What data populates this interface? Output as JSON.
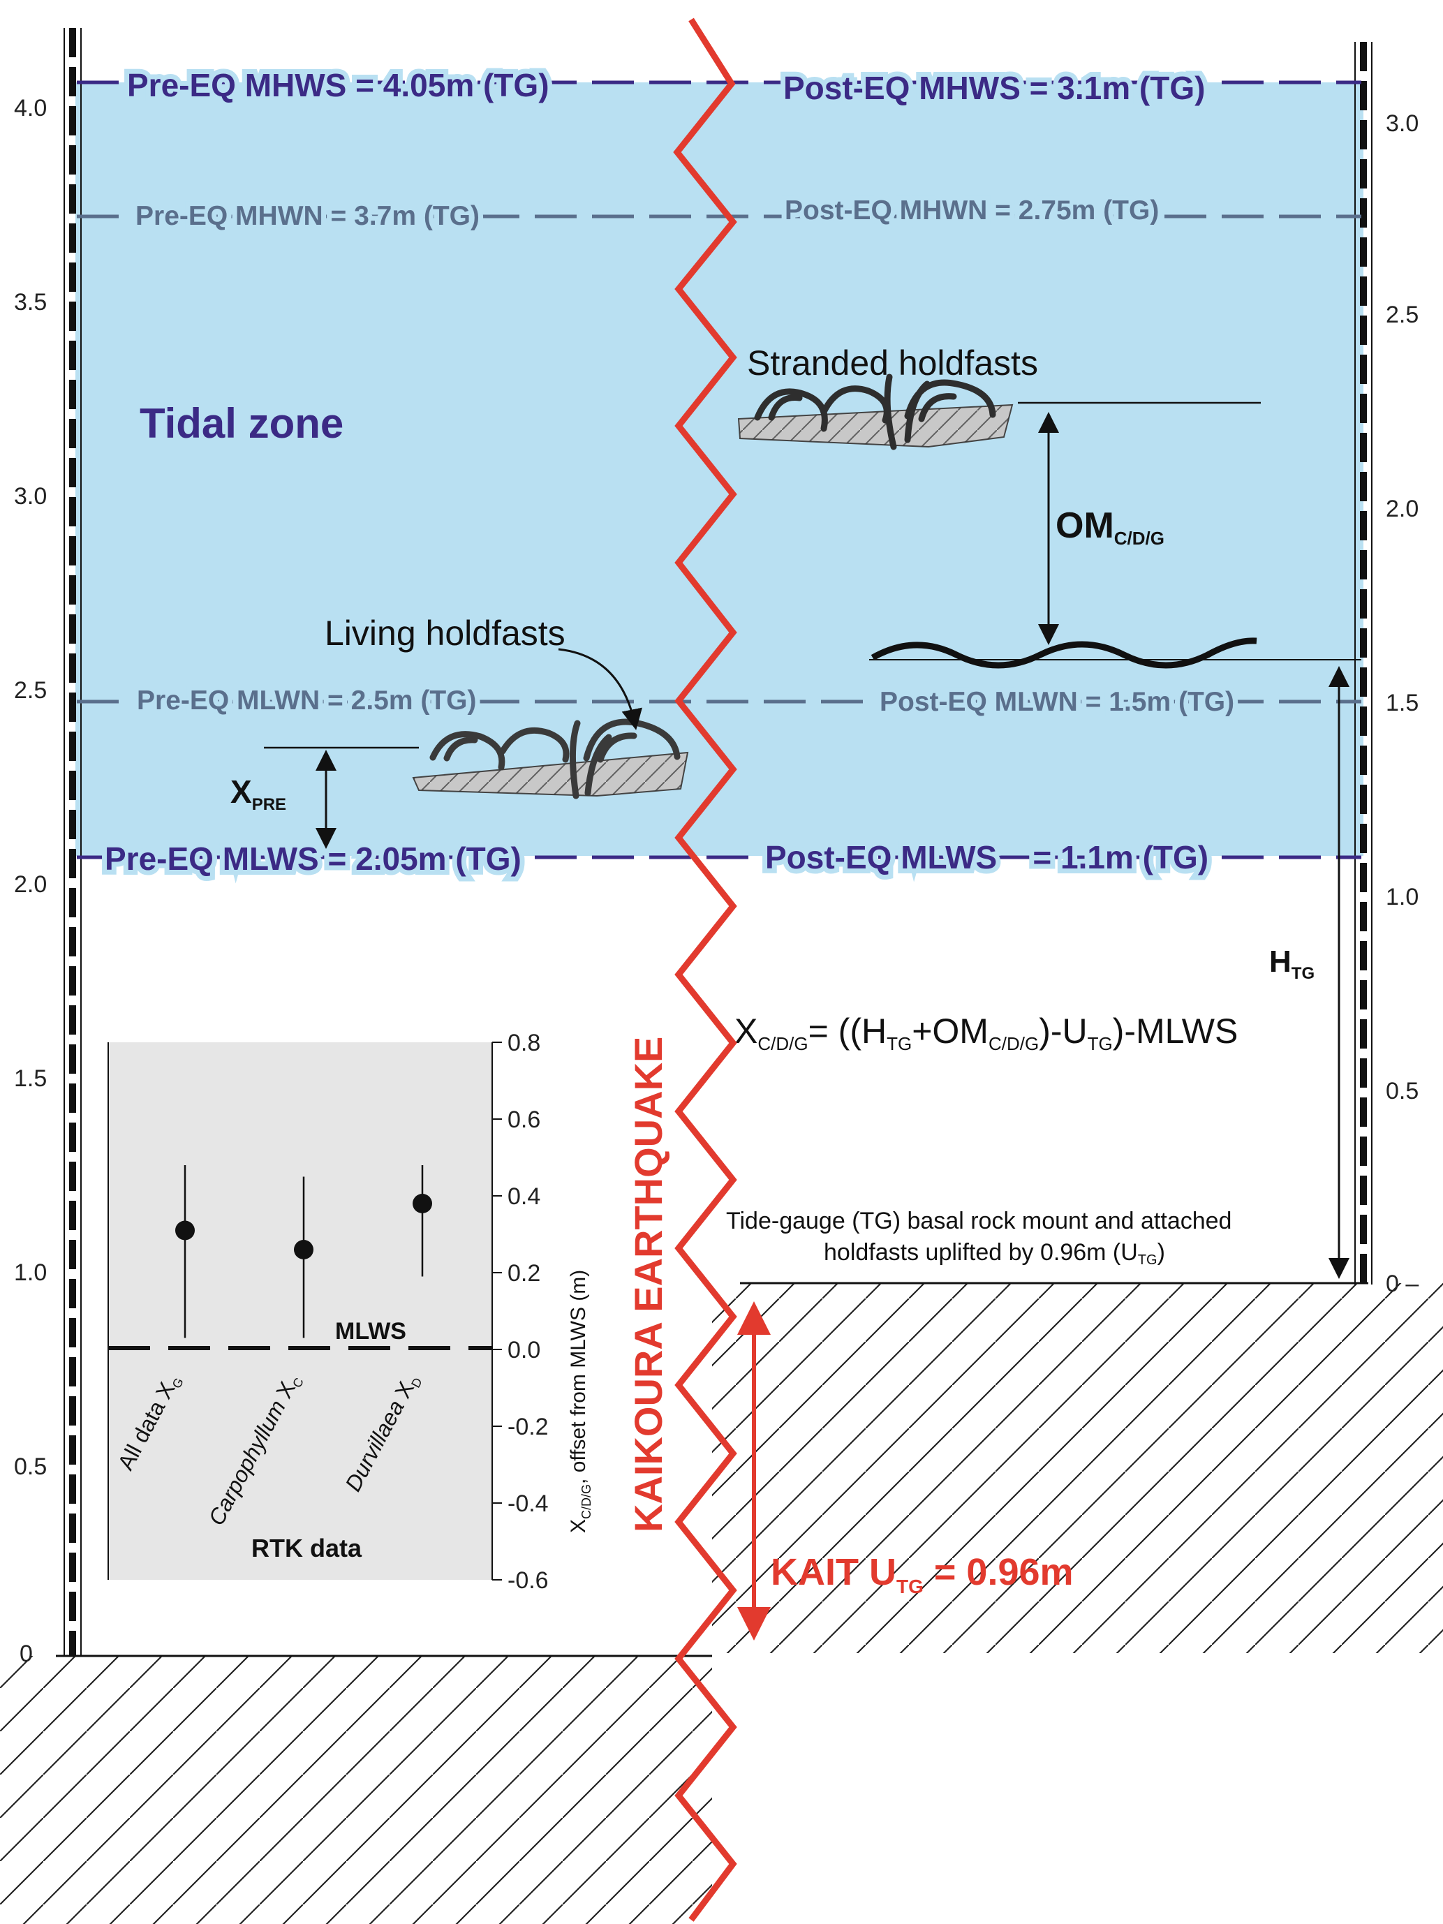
{
  "colors": {
    "tidal_zone": "#b9e0f2",
    "level_line_primary": "#3b2a85",
    "level_line_secondary": "#5a6f8c",
    "fault": "#e23a2e",
    "inset_bg": "#e6e6e6",
    "hatch": "#222222"
  },
  "left_axis": {
    "ticks": [
      "4.0",
      "3.5",
      "3.0",
      "2.5",
      "2.0",
      "1.5",
      "1.0",
      "0.5",
      "0"
    ]
  },
  "right_axis": {
    "ticks": [
      "3.0",
      "2.5",
      "2.0",
      "1.5",
      "1.0",
      "0.5",
      "0 –"
    ]
  },
  "levels": {
    "pre_mhws": "Pre-EQ MHWS = 4.05m (TG)",
    "post_mhws": "Post-EQ MHWS = 3.1m (TG)",
    "pre_mhwn": "Pre-EQ MHWN = 3.7m (TG)",
    "post_mhwn": "Post-EQ MHWN = 2.75m (TG)",
    "pre_mlwn": "Pre-EQ MLWN = 2.5m (TG)",
    "post_mlwn": "Post-EQ MLWN = 1.5m (TG)",
    "pre_mlws": "Pre-EQ MLWS = 2.05m (TG)",
    "post_mlws": "Post-EQ MLWS    = 1.1m (TG)"
  },
  "labels": {
    "tidal_zone": "Tidal zone",
    "stranded_holdfasts": "Stranded holdfasts",
    "living_holdfasts": "Living holdfasts",
    "om": "OM",
    "om_sub": "C/D/G",
    "x_pre": "X",
    "x_pre_sub": "PRE",
    "h_tg": "H",
    "h_tg_sub": "TG",
    "formula": {
      "p1": "X",
      "s1": "C/D/G",
      "p2": "= ((H",
      "s2": "TG",
      "p3": "+OM",
      "s3": "C/D/G",
      "p4": ")-U",
      "s4": "TG",
      "p5": ")-MLWS"
    },
    "tg_note_line1": "Tide-gauge (TG) basal rock mount and attached",
    "tg_note_line2_a": "holdfasts uplifted by 0.96m (U",
    "tg_note_line2_sub": "TG",
    "tg_note_line2_b": ")",
    "earthquake": "KAIKOURA EARTHQUAKE",
    "kait_a": "KAIT U",
    "kait_sub": "TG",
    "kait_b": " = 0.96m"
  },
  "chart_data": {
    "type": "scatter",
    "title": "",
    "xlabel": "RTK data",
    "ylabel": "X",
    "ylabel_sub": "C/D/G",
    "ylabel_rest": ", offset from MLWS (m)",
    "ylim": [
      -0.6,
      0.8
    ],
    "yticks": [
      "0.8",
      "0.6",
      "0.4",
      "0.2",
      "0.0",
      "-0.2",
      "-0.4",
      "-0.6"
    ],
    "reference_line": {
      "label": "MLWS",
      "y": 0.0
    },
    "points": [
      {
        "category_a": "All data X",
        "category_italic": "",
        "category_sub": "G",
        "y": 0.31,
        "low": 0.03,
        "high": 0.48
      },
      {
        "category_a": "",
        "category_italic": "Carpophyllum",
        "category_b": " X",
        "category_sub": "C",
        "y": 0.26,
        "low": 0.03,
        "high": 0.45
      },
      {
        "category_a": "",
        "category_italic": "Durvillaea",
        "category_b": " X",
        "category_sub": "D",
        "y": 0.38,
        "low": 0.19,
        "high": 0.48
      }
    ]
  }
}
